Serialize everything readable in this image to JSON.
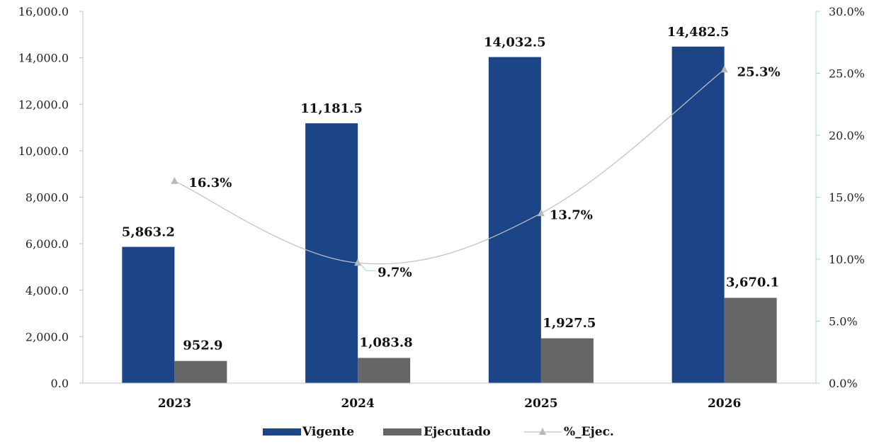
{
  "chart_data": {
    "type": "bar",
    "categories": [
      "2023",
      "2024",
      "2025",
      "2026"
    ],
    "series": [
      {
        "name": "Vigente",
        "type": "bar",
        "axis": "left",
        "color": "#1c4587",
        "values": [
          5863.2,
          11181.5,
          14032.5,
          14482.5
        ],
        "labels": [
          "5,863.2",
          "11,181.5",
          "14,032.5",
          "14,482.5"
        ]
      },
      {
        "name": "Ejecutado",
        "type": "bar",
        "axis": "left",
        "color": "#666666",
        "values": [
          952.9,
          1083.8,
          1927.5,
          3670.1
        ],
        "labels": [
          "952.9",
          "1,083.8",
          "1,927.5",
          "3,670.1"
        ]
      },
      {
        "name": "%_Ejec.",
        "type": "line",
        "axis": "right",
        "color": "#c0c0c0",
        "values": [
          16.3,
          9.7,
          13.7,
          25.3
        ],
        "labels": [
          "16.3%",
          "9.7%",
          "13.7%",
          "25.3%"
        ]
      }
    ],
    "y_left": {
      "ylim": [
        0,
        16000
      ],
      "ticks": [
        "0.0",
        "2,000.0",
        "4,000.0",
        "6,000.0",
        "8,000.0",
        "10,000.0",
        "12,000.0",
        "14,000.0",
        "16,000.0"
      ]
    },
    "y_right": {
      "ylim": [
        0,
        30
      ],
      "ticks": [
        "0.0%",
        "5.0%",
        "10.0%",
        "15.0%",
        "20.0%",
        "25.0%",
        "30.0%"
      ]
    },
    "legend": {
      "position": "bottom",
      "entries": [
        "Vigente",
        "Ejecutado",
        "%_Ejec."
      ]
    },
    "grid": false,
    "title": "",
    "xlabel": "",
    "ylabel": ""
  }
}
